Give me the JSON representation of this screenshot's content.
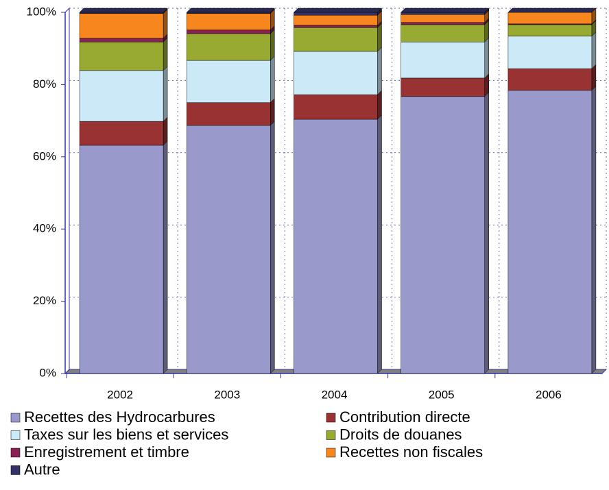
{
  "chart_data": {
    "type": "bar",
    "stacked": true,
    "categories": [
      "2002",
      "2003",
      "2004",
      "2005",
      "2006"
    ],
    "series": [
      {
        "name": "Recettes des Hydrocarbures",
        "color": "#9999cc",
        "values": [
          63.2,
          68.7,
          70.4,
          76.7,
          78.4
        ]
      },
      {
        "name": "Contribution directe",
        "color": "#993333",
        "values": [
          6.6,
          6.3,
          6.8,
          5.1,
          6.0
        ]
      },
      {
        "name": "Taxes sur les biens et services",
        "color": "#cce9f8",
        "values": [
          14.1,
          11.7,
          12.0,
          10.0,
          9.0
        ]
      },
      {
        "name": "Droits de douanes",
        "color": "#99aa33",
        "values": [
          7.9,
          7.4,
          6.6,
          4.8,
          3.2
        ]
      },
      {
        "name": "Enregistrement et timbre",
        "color": "#882255",
        "values": [
          1.0,
          1.0,
          0.6,
          0.6,
          0.2
        ]
      },
      {
        "name": "Recettes non fiscales",
        "color": "#f7861e",
        "values": [
          6.9,
          4.6,
          2.8,
          2.2,
          3.2
        ]
      },
      {
        "name": "Autre",
        "color": "#333366",
        "values": [
          0.3,
          0.3,
          0.8,
          0.6,
          0
        ]
      }
    ],
    "ylim": [
      0,
      100
    ],
    "yticks": [
      {
        "value": 0,
        "label": "0%"
      },
      {
        "value": 20,
        "label": "20%"
      },
      {
        "value": 40,
        "label": "40%"
      },
      {
        "value": 60,
        "label": "60%"
      },
      {
        "value": 80,
        "label": "80%"
      },
      {
        "value": 100,
        "label": "100%"
      }
    ],
    "grid": true
  }
}
